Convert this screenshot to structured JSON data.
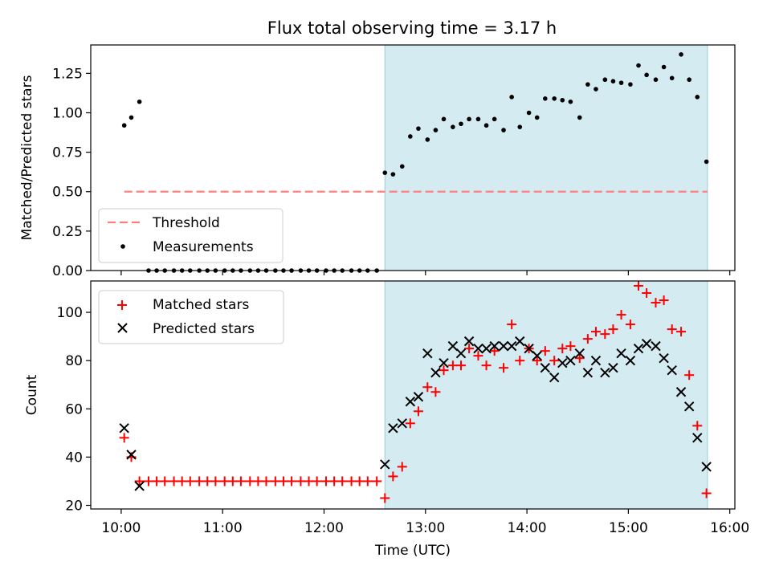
{
  "title": "Flux total observing time = 3.17 h",
  "chart_data": [
    {
      "type": "scatter",
      "panel": "top",
      "ylabel": "Matched/Predicted stars",
      "ylim": [
        0,
        1.43
      ],
      "yticks": [
        "0.00",
        "0.25",
        "0.50",
        "0.75",
        "1.00",
        "1.25"
      ],
      "xlim_hours": [
        9.7,
        16.05
      ],
      "shaded_region_hours": [
        12.6,
        15.78
      ],
      "threshold": {
        "name": "Threshold",
        "value": 0.5,
        "x_start_hours": 10.03,
        "x_end_hours": 15.78,
        "color": "#ff7f7f"
      },
      "series": [
        {
          "name": "Measurements",
          "color": "#000000",
          "x_hours": [
            10.03,
            10.1,
            10.18,
            10.27,
            10.35,
            10.43,
            10.52,
            10.6,
            10.68,
            10.77,
            10.85,
            10.93,
            11.02,
            11.1,
            11.18,
            11.27,
            11.35,
            11.43,
            11.52,
            11.6,
            11.68,
            11.77,
            11.85,
            11.93,
            12.02,
            12.1,
            12.18,
            12.27,
            12.35,
            12.43,
            12.52,
            12.6,
            12.68,
            12.77,
            12.85,
            12.93,
            13.02,
            13.1,
            13.18,
            13.27,
            13.35,
            13.43,
            13.52,
            13.6,
            13.68,
            13.77,
            13.85,
            13.93,
            14.02,
            14.1,
            14.18,
            14.27,
            14.35,
            14.43,
            14.52,
            14.6,
            14.68,
            14.77,
            14.85,
            14.93,
            15.02,
            15.1,
            15.18,
            15.27,
            15.35,
            15.43,
            15.52,
            15.6,
            15.68,
            15.77
          ],
          "values": [
            0.92,
            0.97,
            1.07,
            0,
            0,
            0,
            0,
            0,
            0,
            0,
            0,
            0,
            0,
            0,
            0,
            0,
            0,
            0,
            0,
            0,
            0,
            0,
            0,
            0,
            0,
            0,
            0,
            0,
            0,
            0,
            0,
            0.62,
            0.61,
            0.66,
            0.85,
            0.9,
            0.83,
            0.89,
            0.96,
            0.91,
            0.93,
            0.96,
            0.96,
            0.92,
            0.96,
            0.89,
            1.1,
            0.91,
            1.0,
            0.97,
            1.09,
            1.09,
            1.08,
            1.07,
            0.97,
            1.18,
            1.15,
            1.21,
            1.2,
            1.19,
            1.18,
            1.3,
            1.24,
            1.21,
            1.29,
            1.22,
            1.37,
            1.21,
            1.1,
            0.69
          ]
        }
      ]
    },
    {
      "type": "scatter",
      "panel": "bottom",
      "xlabel": "Time (UTC)",
      "ylabel": "Count",
      "ylim": [
        18.5,
        113
      ],
      "yticks": [
        "20",
        "40",
        "60",
        "80",
        "100"
      ],
      "xlim_hours": [
        9.7,
        16.05
      ],
      "xticks": [
        "10:00",
        "11:00",
        "12:00",
        "13:00",
        "14:00",
        "15:00",
        "16:00"
      ],
      "shaded_region_hours": [
        12.6,
        15.78
      ],
      "series": [
        {
          "name": "Matched stars",
          "marker": "plus",
          "color": "#ff0000",
          "x_hours": [
            10.03,
            10.1,
            10.18,
            10.27,
            10.35,
            10.43,
            10.52,
            10.6,
            10.68,
            10.77,
            10.85,
            10.93,
            11.02,
            11.1,
            11.18,
            11.27,
            11.35,
            11.43,
            11.52,
            11.6,
            11.68,
            11.77,
            11.85,
            11.93,
            12.02,
            12.1,
            12.18,
            12.27,
            12.35,
            12.43,
            12.52,
            12.6,
            12.68,
            12.77,
            12.85,
            12.93,
            13.02,
            13.1,
            13.18,
            13.27,
            13.35,
            13.43,
            13.52,
            13.6,
            13.68,
            13.77,
            13.85,
            13.93,
            14.02,
            14.1,
            14.18,
            14.27,
            14.35,
            14.43,
            14.52,
            14.6,
            14.68,
            14.77,
            14.85,
            14.93,
            15.02,
            15.1,
            15.18,
            15.27,
            15.35,
            15.43,
            15.52,
            15.6,
            15.68,
            15.77
          ],
          "values": [
            48,
            40,
            30,
            30,
            30,
            30,
            30,
            30,
            30,
            30,
            30,
            30,
            30,
            30,
            30,
            30,
            30,
            30,
            30,
            30,
            30,
            30,
            30,
            30,
            30,
            30,
            30,
            30,
            30,
            30,
            30,
            23,
            32,
            36,
            54,
            59,
            69,
            67,
            76,
            78,
            78,
            85,
            82,
            78,
            84,
            77,
            95,
            80,
            85,
            80,
            84,
            80,
            85,
            86,
            81,
            89,
            92,
            91,
            93,
            99,
            95,
            111,
            108,
            104,
            105,
            93,
            92,
            74,
            53,
            25
          ]
        },
        {
          "name": "Predicted stars",
          "marker": "x",
          "color": "#000000",
          "x_hours": [
            10.03,
            10.1,
            10.18,
            12.6,
            12.68,
            12.77,
            12.85,
            12.93,
            13.02,
            13.1,
            13.18,
            13.27,
            13.35,
            13.43,
            13.52,
            13.6,
            13.68,
            13.77,
            13.85,
            13.93,
            14.02,
            14.1,
            14.18,
            14.27,
            14.35,
            14.43,
            14.52,
            14.6,
            14.68,
            14.77,
            14.85,
            14.93,
            15.02,
            15.1,
            15.18,
            15.27,
            15.35,
            15.43,
            15.52,
            15.6,
            15.68,
            15.77
          ],
          "values": [
            52,
            41,
            28,
            37,
            52,
            54,
            63,
            65,
            83,
            75,
            79,
            86,
            83,
            88,
            85,
            85,
            86,
            86,
            86,
            88,
            85,
            82,
            77,
            73,
            79,
            80,
            83,
            75,
            80,
            75,
            77,
            83,
            80,
            85,
            87,
            86,
            81,
            76,
            67,
            61,
            48,
            36
          ]
        }
      ]
    }
  ]
}
